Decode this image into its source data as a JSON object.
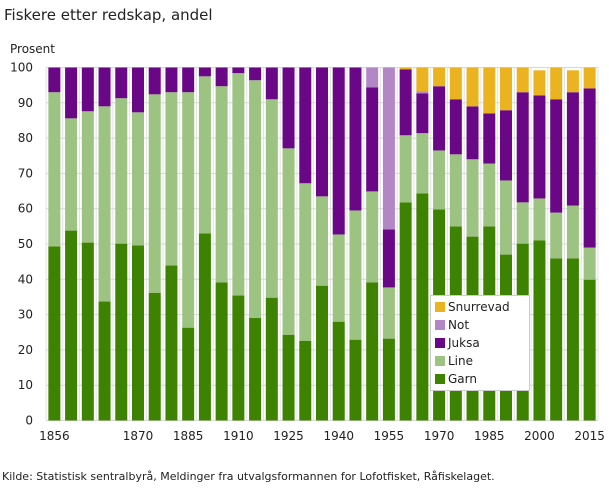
{
  "chart_data": {
    "type": "bar",
    "stacked": true,
    "title": "Fiskere etter redskap, andel",
    "ylabel": "Prosent",
    "xlabel": "",
    "ylim": [
      0,
      100
    ],
    "yticks": [
      0,
      10,
      20,
      30,
      40,
      50,
      60,
      70,
      80,
      90,
      100
    ],
    "grid": true,
    "legend_position": "bottom-right (inside plot)",
    "categories": [
      "1856",
      "",
      "",
      "",
      "",
      "1870",
      "",
      "",
      "1885",
      "",
      "",
      "1910",
      "",
      "",
      "1925",
      "",
      "",
      "1940",
      "",
      "",
      "1955",
      "",
      "",
      "1970",
      "",
      "",
      "1985",
      "",
      "",
      "2000",
      "",
      "",
      "2015"
    ],
    "series": [
      {
        "name": "Garn",
        "color": "#3d8200",
        "values": [
          49.3,
          53.8,
          50.4,
          33.7,
          50.1,
          49.6,
          36.2,
          43.9,
          26.3,
          53.0,
          39.1,
          35.4,
          29.1,
          34.8,
          24.3,
          22.6,
          38.2,
          28.0,
          22.9,
          39.1,
          23.2,
          61.8,
          64.3,
          59.8,
          55.0,
          52.1,
          55.0,
          47.0,
          50.1,
          51.0,
          45.9,
          45.9,
          39.9
        ]
      },
      {
        "name": "Line",
        "color": "#9dc383",
        "values": [
          43.7,
          31.8,
          37.2,
          55.3,
          41.2,
          37.7,
          56.2,
          49.1,
          66.7,
          44.5,
          55.6,
          63.0,
          67.3,
          56.2,
          52.8,
          44.6,
          25.3,
          24.7,
          36.6,
          25.8,
          14.5,
          19.0,
          17.1,
          16.7,
          20.4,
          21.9,
          17.8,
          21.0,
          11.7,
          11.9,
          13.0,
          15.0,
          9.1
        ]
      },
      {
        "name": "Juksa",
        "color": "#6a0787",
        "values": [
          7.0,
          14.4,
          12.4,
          11.0,
          8.7,
          12.7,
          7.6,
          7.0,
          7.0,
          2.5,
          5.3,
          1.6,
          3.6,
          9.0,
          22.9,
          32.8,
          36.5,
          47.3,
          40.5,
          29.5,
          16.4,
          18.7,
          11.3,
          18.2,
          15.6,
          15.0,
          14.2,
          19.9,
          31.2,
          29.2,
          32.1,
          32.1,
          45.1
        ]
      },
      {
        "name": "Not",
        "color": "#b386c6",
        "values": [
          0,
          0,
          0,
          0,
          0,
          0,
          0,
          0,
          0,
          0,
          0,
          0,
          0,
          0,
          0,
          0,
          0,
          0,
          0,
          5.6,
          45.9,
          0,
          0.6,
          0,
          0,
          0,
          0,
          0,
          0,
          0,
          0,
          0,
          0
        ]
      },
      {
        "name": "Snurrevad",
        "color": "#ebb31f",
        "values": [
          0,
          0,
          0,
          0,
          0,
          0,
          0,
          0,
          0,
          0,
          0,
          0,
          0,
          0,
          0,
          0,
          0,
          0,
          0,
          0,
          0,
          0.5,
          6.7,
          5.3,
          9.0,
          11.0,
          13.0,
          12.1,
          7.0,
          7.1,
          9.0,
          6.2,
          5.9
        ]
      }
    ],
    "legend_order": [
      "Snurrevad",
      "Not",
      "Juksa",
      "Line",
      "Garn"
    ]
  },
  "source": "Kilde: Statistisk sentralbyrå, Meldinger fra utvalgsformannen for Lofotfisket, Råfiskelaget."
}
